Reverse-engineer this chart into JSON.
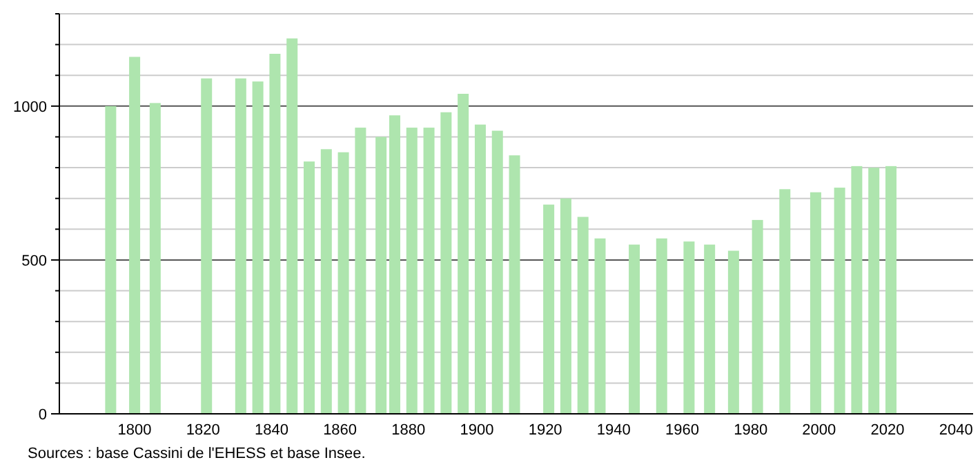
{
  "chart_data": {
    "type": "bar",
    "x": [
      1793,
      1800,
      1806,
      1821,
      1831,
      1836,
      1841,
      1846,
      1851,
      1856,
      1861,
      1866,
      1872,
      1876,
      1881,
      1886,
      1891,
      1896,
      1901,
      1906,
      1911,
      1921,
      1926,
      1931,
      1936,
      1946,
      1954,
      1962,
      1968,
      1975,
      1982,
      1990,
      1999,
      2006,
      2011,
      2016,
      2021
    ],
    "values": [
      1000,
      1160,
      1010,
      1090,
      1090,
      1080,
      1170,
      1220,
      820,
      860,
      850,
      930,
      900,
      970,
      930,
      930,
      980,
      1040,
      940,
      920,
      840,
      680,
      700,
      640,
      570,
      550,
      570,
      560,
      550,
      530,
      630,
      730,
      720,
      735,
      805,
      800,
      805
    ],
    "color": "#aee5ae",
    "xlim": [
      1778,
      2045
    ],
    "xticks": [
      1800,
      1820,
      1840,
      1860,
      1880,
      1900,
      1920,
      1940,
      1960,
      1980,
      2000,
      2020,
      2040
    ],
    "ylim": [
      0,
      1300
    ],
    "yticks": [
      0,
      {
        "value": 100,
        "label": null
      },
      {
        "value": 200,
        "label": null
      },
      {
        "value": 300,
        "label": null
      },
      {
        "value": 400,
        "label": null
      },
      500,
      {
        "value": 600,
        "label": null
      },
      {
        "value": 700,
        "label": null
      },
      {
        "value": 800,
        "label": null
      },
      {
        "value": 900,
        "label": null
      },
      1000,
      {
        "value": 1100,
        "label": null
      },
      {
        "value": 1200,
        "label": null
      },
      {
        "value": 1300,
        "label": null
      }
    ],
    "grid": "y",
    "annotations": [
      "Sources : base Cassini de l'EHESS et base Insee."
    ]
  }
}
